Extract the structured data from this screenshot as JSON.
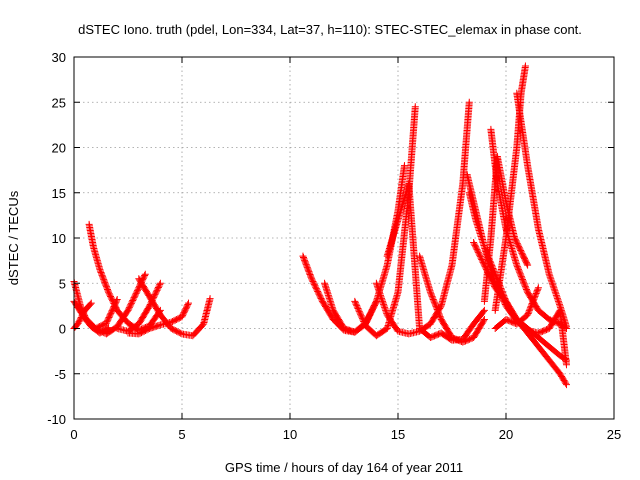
{
  "chart_data": {
    "type": "scatter",
    "title": "dSTEC Iono. truth (pdel, Lon=334, Lat=37, h=110): STEC-STEC_elemax in phase cont.",
    "xlabel": "GPS time / hours of day 164 of year 2011",
    "ylabel": "dSTEC  / TECUs",
    "xlim": [
      0,
      25
    ],
    "ylim": [
      -10,
      30
    ],
    "xticks": [
      0,
      5,
      10,
      15,
      20,
      25
    ],
    "yticks": [
      -10,
      -5,
      0,
      5,
      10,
      15,
      20,
      25,
      30
    ],
    "grid": true,
    "legend": "none",
    "marker": "+",
    "color": "#ff0000",
    "arcs": [
      {
        "x": [
          0.0,
          0.3,
          0.6,
          1.0,
          1.5,
          2.0
        ],
        "y": [
          5.2,
          2.5,
          0.8,
          0.0,
          0.6,
          3.2
        ]
      },
      {
        "x": [
          0.0,
          0.4,
          0.8,
          1.2,
          1.6
        ],
        "y": [
          3.0,
          1.5,
          0.2,
          -0.5,
          0.1
        ]
      },
      {
        "x": [
          0.0,
          0.2,
          0.5,
          0.8
        ],
        "y": [
          0.0,
          0.6,
          2.0,
          2.8
        ]
      },
      {
        "x": [
          0.7,
          0.9,
          1.2,
          1.6,
          2.0,
          2.5,
          3.0,
          3.5,
          4.0
        ],
        "y": [
          11.5,
          9.0,
          6.5,
          4.0,
          2.0,
          0.6,
          -0.2,
          0.3,
          2.0
        ]
      },
      {
        "x": [
          0.5,
          1.0,
          1.5,
          2.0,
          2.5,
          3.0,
          3.3
        ],
        "y": [
          1.2,
          0.0,
          -0.6,
          0.2,
          2.0,
          4.5,
          6.0
        ]
      },
      {
        "x": [
          3.0,
          3.5,
          4.0,
          4.5,
          5.0,
          5.5,
          6.0,
          6.3
        ],
        "y": [
          5.5,
          3.5,
          1.5,
          0.0,
          -0.6,
          -0.8,
          0.5,
          3.3
        ]
      },
      {
        "x": [
          2.0,
          2.5,
          3.0,
          3.5,
          4.0
        ],
        "y": [
          0.0,
          -0.3,
          0.5,
          2.5,
          5.0
        ]
      },
      {
        "x": [
          2.5,
          3.0,
          3.5,
          4.0,
          4.5,
          5.0,
          5.3
        ],
        "y": [
          -0.5,
          -0.6,
          0.0,
          0.4,
          0.7,
          1.3,
          2.8
        ]
      },
      {
        "x": [
          10.6,
          11.0,
          11.5,
          12.0,
          12.5,
          13.0,
          13.5,
          14.0
        ],
        "y": [
          8.0,
          5.5,
          3.0,
          1.0,
          -0.2,
          -0.4,
          0.6,
          3.0
        ]
      },
      {
        "x": [
          11.6,
          12.0,
          12.5,
          13.0,
          13.5,
          14.0,
          14.5,
          15.0,
          15.3
        ],
        "y": [
          5.0,
          2.0,
          0.0,
          -0.4,
          0.5,
          3.0,
          7.0,
          13.0,
          18.0
        ]
      },
      {
        "x": [
          13.0,
          13.5,
          14.0,
          14.5,
          15.0,
          15.5,
          15.8
        ],
        "y": [
          3.0,
          0.3,
          -0.8,
          0.0,
          4.0,
          15.0,
          24.5
        ]
      },
      {
        "x": [
          14.0,
          14.5,
          15.0,
          15.5,
          16.0,
          16.5,
          17.0,
          17.5,
          18.0,
          18.3
        ],
        "y": [
          5.0,
          1.5,
          -0.3,
          -0.6,
          -0.3,
          0.5,
          2.5,
          7.0,
          16.0,
          25.0
        ]
      },
      {
        "x": [
          14.5,
          15.0,
          15.5,
          16.0,
          16.5,
          17.0,
          17.5,
          18.0,
          18.5,
          19.0
        ],
        "y": [
          8.0,
          12.0,
          16.0,
          0.0,
          -1.0,
          -0.5,
          -1.3,
          -1.2,
          0.5,
          2.0
        ]
      },
      {
        "x": [
          16.0,
          16.5,
          17.0,
          17.5,
          18.0,
          18.5,
          19.0
        ],
        "y": [
          8.0,
          4.0,
          1.0,
          -1.0,
          -1.5,
          -1.0,
          1.0
        ]
      },
      {
        "x": [
          18.2,
          18.5,
          19.0,
          19.5,
          20.0,
          20.5,
          21.0,
          21.5,
          22.0,
          22.5,
          22.8
        ],
        "y": [
          17.0,
          14.0,
          9.0,
          5.0,
          2.5,
          0.8,
          -0.2,
          -0.5,
          0.0,
          2.0,
          -4.0
        ]
      },
      {
        "x": [
          18.5,
          19.0,
          19.5,
          20.0,
          20.5,
          21.0,
          21.5,
          22.0,
          22.5,
          22.8
        ],
        "y": [
          9.5,
          7.0,
          4.5,
          3.0,
          1.0,
          -0.5,
          -2.0,
          -3.5,
          -5.0,
          -6.2
        ]
      },
      {
        "x": [
          18.3,
          18.6,
          19.0,
          19.5,
          20.0,
          20.5,
          21.0,
          21.5,
          22.0,
          22.5,
          22.8
        ],
        "y": [
          15.0,
          12.0,
          9.0,
          6.0,
          3.0,
          1.0,
          0.0,
          -1.0,
          -2.0,
          -3.0,
          -3.5
        ]
      },
      {
        "x": [
          19.0,
          19.3,
          19.6,
          20.0,
          20.4,
          20.8,
          21.0
        ],
        "y": [
          3.0,
          10.0,
          19.0,
          14.0,
          10.0,
          8.0,
          7.0
        ]
      },
      {
        "x": [
          19.3,
          19.6,
          20.0,
          20.5,
          21.0,
          21.5,
          22.0,
          22.5,
          22.8
        ],
        "y": [
          22.0,
          16.0,
          11.0,
          7.0,
          4.0,
          2.0,
          1.0,
          0.5,
          0.0
        ]
      },
      {
        "x": [
          20.5,
          21.0,
          21.5,
          22.0,
          22.5,
          22.8
        ],
        "y": [
          26.0,
          18.0,
          11.0,
          6.0,
          2.5,
          0.2
        ]
      },
      {
        "x": [
          19.5,
          20.0,
          20.5,
          20.7,
          20.9
        ],
        "y": [
          2.0,
          10.0,
          20.0,
          26.0,
          29.0
        ]
      },
      {
        "x": [
          19.5,
          20.0,
          20.5,
          21.0,
          21.5
        ],
        "y": [
          0.0,
          1.0,
          0.5,
          1.5,
          4.5
        ]
      }
    ]
  }
}
